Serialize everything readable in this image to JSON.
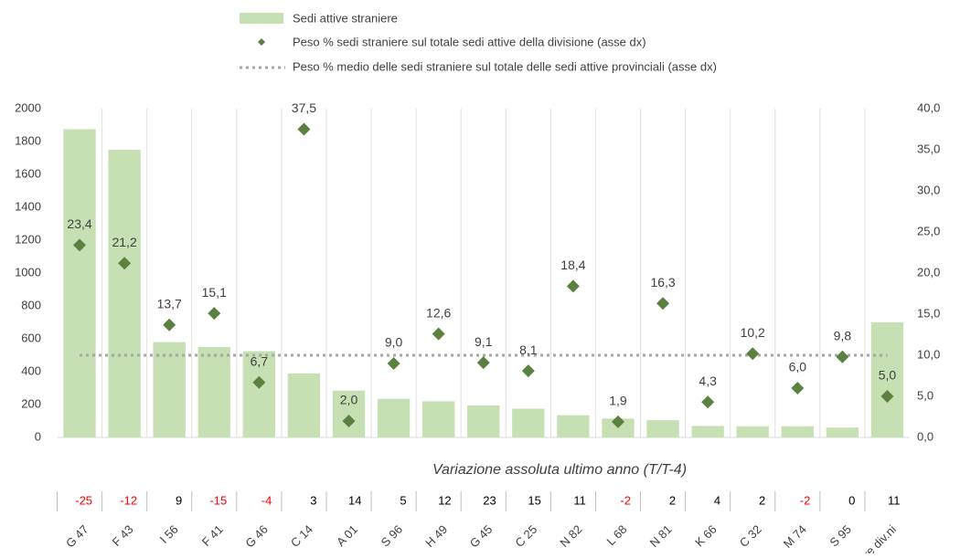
{
  "chart_data": {
    "type": "bar_scatter",
    "categories": [
      "G 47",
      "F 43",
      "I 56",
      "F 41",
      "G 46",
      "C 14",
      "A 01",
      "S 96",
      "H 49",
      "G 45",
      "C 25",
      "N 82",
      "L 68",
      "N 81",
      "K 66",
      "C 32",
      "M 74",
      "S 95",
      "Altre div.ni"
    ],
    "series": [
      {
        "name": "Sedi attive straniere",
        "type": "bar",
        "color": "#c6e0b4",
        "values": [
          1875,
          1750,
          580,
          550,
          525,
          390,
          285,
          235,
          220,
          195,
          175,
          135,
          115,
          105,
          70,
          68,
          68,
          60,
          700
        ]
      },
      {
        "name": "Peso % sedi straniere sul totale sedi attive della divisione (asse dx)",
        "type": "scatter",
        "axis": "y2",
        "color": "#5b8040",
        "values": [
          23.4,
          21.2,
          13.7,
          15.1,
          6.7,
          37.5,
          2.0,
          9.0,
          12.6,
          9.1,
          8.1,
          18.4,
          1.9,
          16.3,
          4.3,
          10.2,
          6.0,
          9.8,
          5.0
        ],
        "value_labels": [
          "23,4",
          "21,2",
          "13,7",
          "15,1",
          "6,7",
          "37,5",
          "2,0",
          "9,0",
          "12,6",
          "9,1",
          "8,1",
          "18,4",
          "1,9",
          "16,3",
          "4,3",
          "10,2",
          "6,0",
          "9,8",
          "5,0"
        ]
      },
      {
        "name": "Peso % medio delle sedi straniere sul totale delle sedi attive provinciali (asse dx)",
        "type": "hline",
        "axis": "y2",
        "color": "#a6a6a6",
        "value": 10
      }
    ],
    "ylim": [
      0,
      2000
    ],
    "yticks": [
      0,
      200,
      400,
      600,
      800,
      1000,
      1200,
      1400,
      1600,
      1800,
      2000
    ],
    "y2lim": [
      0,
      40
    ],
    "y2ticks": [
      {
        "value": 0,
        "label": "0,0"
      },
      {
        "value": 5,
        "label": "5,0"
      },
      {
        "value": 10,
        "label": "10,0"
      },
      {
        "value": 15,
        "label": "15,0"
      },
      {
        "value": 20,
        "label": "20,0"
      },
      {
        "value": 25,
        "label": "25,0"
      },
      {
        "value": 30,
        "label": "30,0"
      },
      {
        "value": 35,
        "label": "35,0"
      },
      {
        "value": 40,
        "label": "40,0"
      }
    ],
    "table_title": "Variazione assoluta ultimo anno (T/T-4)",
    "variations": [
      -25,
      -12,
      9,
      -15,
      -4,
      3,
      14,
      5,
      12,
      23,
      15,
      11,
      -2,
      2,
      4,
      2,
      -2,
      0,
      11
    ]
  }
}
